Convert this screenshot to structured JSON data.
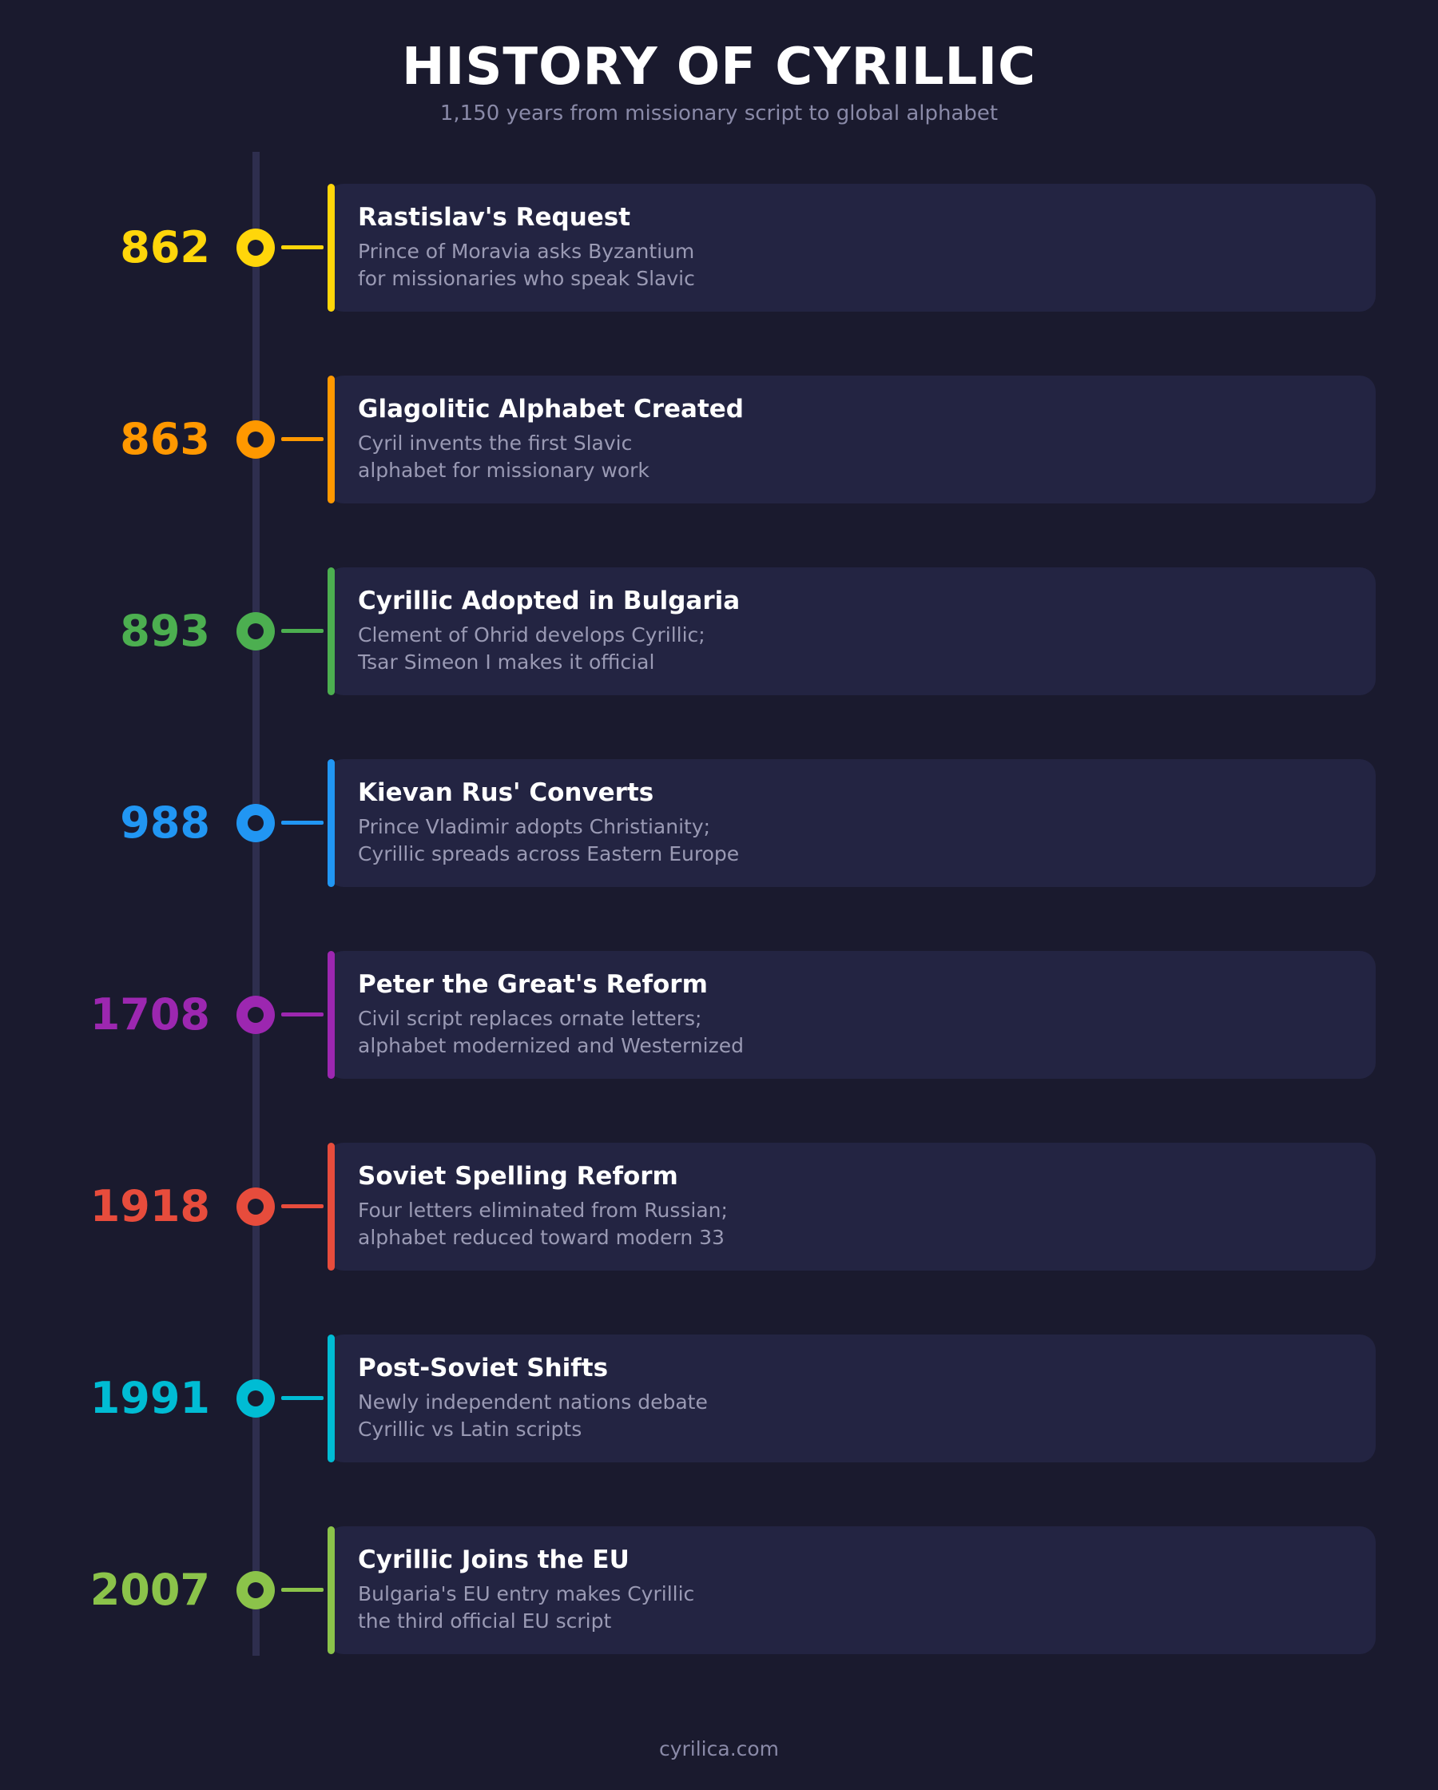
{
  "header": {
    "title": "HISTORY OF CYRILLIC",
    "subtitle": "1,150 years from missionary script to global alphabet"
  },
  "events": [
    {
      "year": "862",
      "title": "Rastislav's Request",
      "desc_line1": "Prince of Moravia asks Byzantium",
      "desc_line2": "for missionaries who speak Slavic",
      "color": "#ffd60a"
    },
    {
      "year": "863",
      "title": "Glagolitic Alphabet Created",
      "desc_line1": "Cyril invents the first Slavic",
      "desc_line2": "alphabet for missionary work",
      "color": "#ff9800"
    },
    {
      "year": "893",
      "title": "Cyrillic Adopted in Bulgaria",
      "desc_line1": "Clement of Ohrid develops Cyrillic;",
      "desc_line2": "Tsar Simeon I makes it official",
      "color": "#4caf50"
    },
    {
      "year": "988",
      "title": "Kievan Rus' Converts",
      "desc_line1": "Prince Vladimir adopts Christianity;",
      "desc_line2": "Cyrillic spreads across Eastern Europe",
      "color": "#2196f3"
    },
    {
      "year": "1708",
      "title": "Peter the Great's Reform",
      "desc_line1": "Civil script replaces ornate letters;",
      "desc_line2": "alphabet modernized and Westernized",
      "color": "#9c27b0"
    },
    {
      "year": "1918",
      "title": "Soviet Spelling Reform",
      "desc_line1": "Four letters eliminated from Russian;",
      "desc_line2": "alphabet reduced toward modern 33",
      "color": "#e74c3c"
    },
    {
      "year": "1991",
      "title": "Post-Soviet Shifts",
      "desc_line1": "Newly independent nations debate",
      "desc_line2": "Cyrillic vs Latin scripts",
      "color": "#00bcd4"
    },
    {
      "year": "2007",
      "title": "Cyrillic Joins the EU",
      "desc_line1": "Bulgaria's EU entry makes Cyrillic",
      "desc_line2": "the third official EU script",
      "color": "#8bc34a"
    }
  ],
  "footer": {
    "text": "cyrilica.com"
  },
  "colors": {
    "background": "#1a1a2e",
    "card": "#232442",
    "spine": "#2e2e4e"
  }
}
